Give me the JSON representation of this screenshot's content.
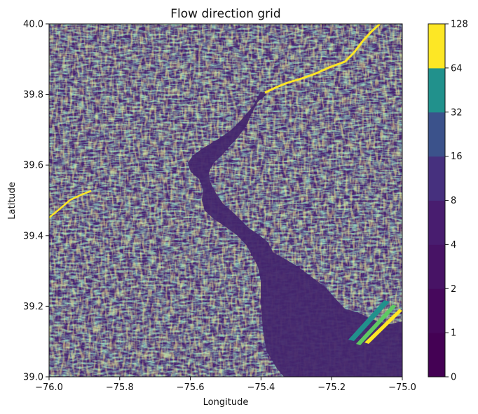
{
  "chart_data": {
    "type": "heatmap",
    "title": "Flow direction grid",
    "xlabel": "Longitude",
    "ylabel": "Latitude",
    "xlim": [
      -76.0,
      -75.0
    ],
    "ylim": [
      39.0,
      40.0
    ],
    "xticks": [
      {
        "value": -76.0,
        "label": "−76.0"
      },
      {
        "value": -75.8,
        "label": "−75.8"
      },
      {
        "value": -75.6,
        "label": "−75.6"
      },
      {
        "value": -75.4,
        "label": "−75.4"
      },
      {
        "value": -75.2,
        "label": "−75.2"
      },
      {
        "value": -75.0,
        "label": "−75.0"
      }
    ],
    "yticks": [
      {
        "value": 39.0,
        "label": "39.0"
      },
      {
        "value": 39.2,
        "label": "39.2"
      },
      {
        "value": 39.4,
        "label": "39.4"
      },
      {
        "value": 39.6,
        "label": "39.6"
      },
      {
        "value": 39.8,
        "label": "39.8"
      },
      {
        "value": 40.0,
        "label": "40.0"
      }
    ],
    "colorbar": {
      "levels": [
        "0",
        "1",
        "2",
        "4",
        "8",
        "16",
        "32",
        "64",
        "128"
      ],
      "colors": [
        "#440154",
        "#46085c",
        "#471365",
        "#481d6f",
        "#46307e",
        "#3b528b",
        "#21918c",
        "#fde725"
      ]
    },
    "palette": {
      "deep": "#3b1a5a",
      "dark": "#45106b",
      "mid": "#482878",
      "blue": "#3b528b",
      "teal": "#21918c",
      "green": "#5ec962",
      "yellow": "#fde725",
      "bay": "#43256c"
    },
    "grid": false
  }
}
